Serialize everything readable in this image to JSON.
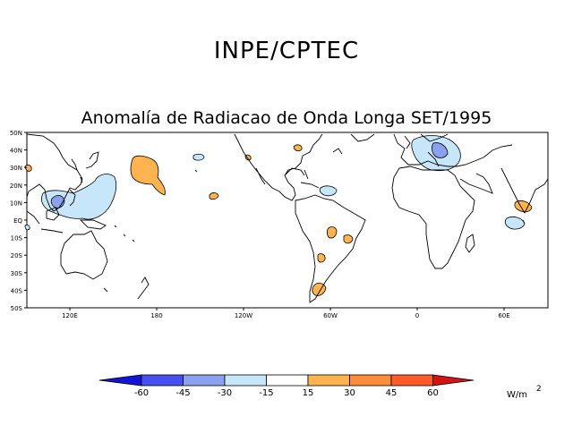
{
  "header": {
    "org_title": "INPE/CPTEC"
  },
  "map": {
    "title": "Anomalía de Radiacao de Onda Longa SET/1995",
    "lat_labels": [
      "50N",
      "40N",
      "30N",
      "20N",
      "10N",
      "EQ",
      "10S",
      "20S",
      "30S",
      "40S",
      "50S"
    ],
    "lon_labels": [
      "120E",
      "180",
      "120W",
      "60W",
      "0",
      "60E"
    ]
  },
  "legend": {
    "levels": [
      "-60",
      "-45",
      "-30",
      "-15",
      "15",
      "30",
      "45",
      "60"
    ],
    "unit": "W/m",
    "unit_exp": "2",
    "colors": [
      "#1414d8",
      "#4650f0",
      "#8ca0f0",
      "#c8e6fa",
      "#ffffff",
      "#ffb450",
      "#ff8c3c",
      "#ff5a28",
      "#d21414"
    ]
  },
  "colors": {
    "positive": "#ffb450",
    "negative": "#c8e6fa",
    "strong_negative": "#8ca0f0"
  }
}
